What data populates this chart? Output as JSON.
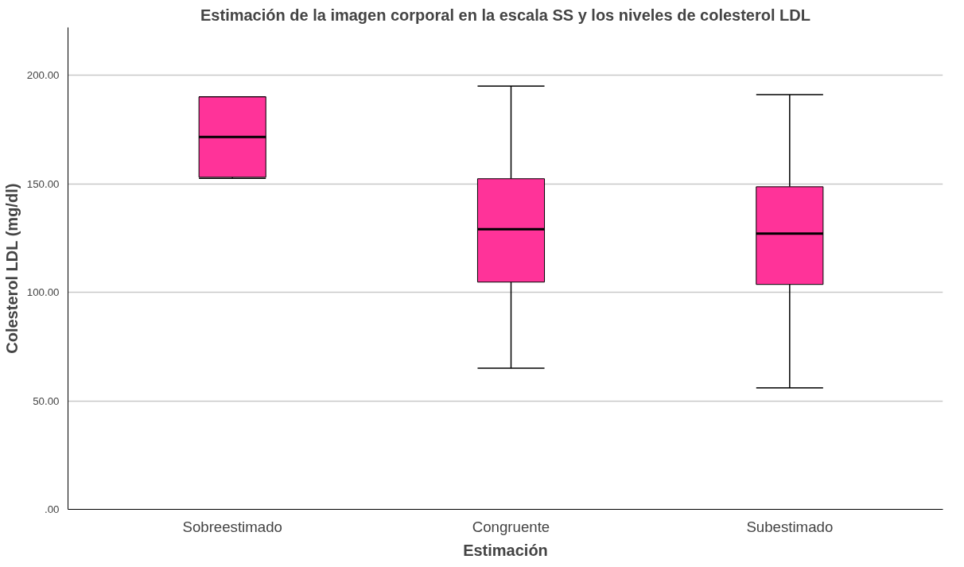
{
  "chart_data": {
    "type": "box",
    "title": "Estimación de la imagen corporal en la escala SS y los niveles de colesterol LDL",
    "xlabel": "Estimación",
    "ylabel": "Colesterol LDL (mg/dl)",
    "categories": [
      "Sobreestimado",
      "Congruente",
      "Subestimado"
    ],
    "boxes": [
      {
        "low": 152.5,
        "q1": 153,
        "median": 171.5,
        "q3": 190,
        "high": 190
      },
      {
        "low": 65,
        "q1": 104.7,
        "median": 129,
        "q3": 152.3,
        "high": 195
      },
      {
        "low": 56,
        "q1": 103.6,
        "median": 127,
        "q3": 148.6,
        "high": 191
      }
    ],
    "color": "#ff3399",
    "ylim": [
      0,
      222
    ],
    "yticks": [
      {
        "value": 0,
        "label": ".00"
      },
      {
        "value": 50,
        "label": "50.00"
      },
      {
        "value": 100,
        "label": "100.00"
      },
      {
        "value": 150,
        "label": "150.00"
      },
      {
        "value": 200,
        "label": "200.00"
      }
    ],
    "grid": "y"
  }
}
